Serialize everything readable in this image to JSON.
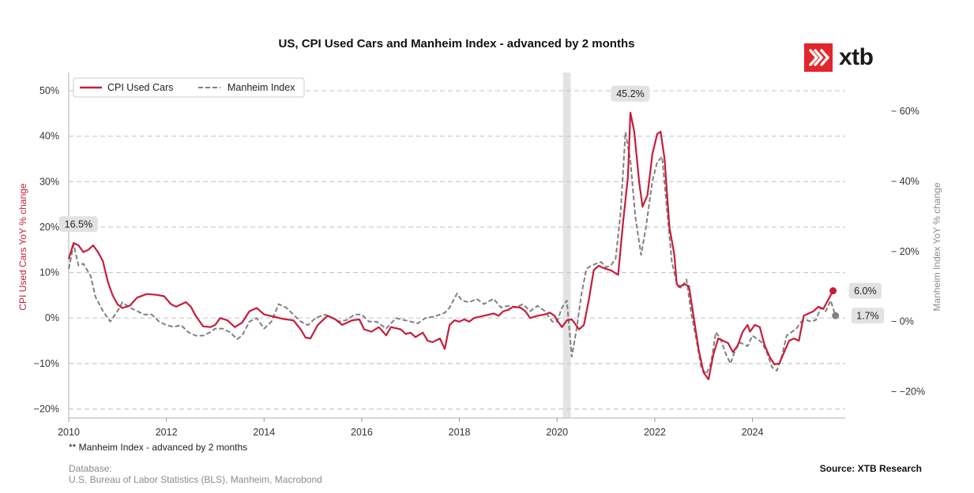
{
  "brand": {
    "logo_text": "xtb",
    "logo_color": "#e2262b"
  },
  "footnote": "** Manheim Index - advanced by 2 months",
  "database_label": "Database:",
  "database_sources": "U.S. Bureau of Labor Statistics (BLS), Manheim, Macrobond",
  "source": "Source: XTB Research",
  "chart_data": {
    "type": "line",
    "title": "US, CPI Used Cars and Manheim Index - advanced by 2 months",
    "ylabel": "CPI Used Cars YoY % change",
    "ylabel_right": "Manheim Index YoY % change",
    "xlim": [
      2010,
      2025.9
    ],
    "ylim": [
      -22,
      54
    ],
    "ylim_right": [
      -27.5,
      71
    ],
    "yticks": [
      -20,
      -10,
      0,
      10,
      20,
      30,
      40,
      50
    ],
    "ytick_labels": [
      "−20%",
      "−10%",
      "0%",
      "10%",
      "20%",
      "30%",
      "40%",
      "50%"
    ],
    "yticks_right": [
      -20,
      0,
      20,
      40,
      60
    ],
    "ytick_labels_right": [
      "− −20%",
      "− 0%",
      "− 20%",
      "− 40%",
      "− 60%"
    ],
    "xticks": [
      2010,
      2012,
      2014,
      2016,
      2018,
      2020,
      2022,
      2024
    ],
    "xtick_labels": [
      "2010",
      "2012",
      "2014",
      "2016",
      "2018",
      "2020",
      "2022",
      "2024"
    ],
    "grid": "horizontal-dashed",
    "legend_position": "top-left",
    "shaded_period": [
      2020.12,
      2020.28
    ],
    "series": [
      {
        "name": "CPI Used Cars",
        "axis": "left",
        "color": "#c41e3a",
        "style": "solid",
        "points": [
          [
            2010.0,
            13
          ],
          [
            2010.1,
            16.5
          ],
          [
            2010.2,
            16
          ],
          [
            2010.3,
            14.5
          ],
          [
            2010.4,
            15
          ],
          [
            2010.5,
            16
          ],
          [
            2010.6,
            14.5
          ],
          [
            2010.7,
            12.5
          ],
          [
            2010.8,
            8
          ],
          [
            2010.9,
            5
          ],
          [
            2011.0,
            3
          ],
          [
            2011.1,
            2.2
          ],
          [
            2011.25,
            2.7
          ],
          [
            2011.4,
            4.5
          ],
          [
            2011.6,
            5.3
          ],
          [
            2011.8,
            5.1
          ],
          [
            2011.95,
            4.8
          ],
          [
            2012.1,
            3
          ],
          [
            2012.2,
            2.5
          ],
          [
            2012.4,
            3.5
          ],
          [
            2012.5,
            2.5
          ],
          [
            2012.6,
            0.5
          ],
          [
            2012.75,
            -1.8
          ],
          [
            2012.9,
            -2
          ],
          [
            2013.0,
            -1.5
          ],
          [
            2013.1,
            0
          ],
          [
            2013.25,
            -0.5
          ],
          [
            2013.4,
            -2
          ],
          [
            2013.55,
            -1
          ],
          [
            2013.7,
            1.5
          ],
          [
            2013.85,
            2.2
          ],
          [
            2014.0,
            0.8
          ],
          [
            2014.2,
            0.3
          ],
          [
            2014.4,
            -0.2
          ],
          [
            2014.6,
            -0.5
          ],
          [
            2014.75,
            -2.5
          ],
          [
            2014.85,
            -4.3
          ],
          [
            2014.95,
            -4.5
          ],
          [
            2015.1,
            -1.5
          ],
          [
            2015.3,
            0.5
          ],
          [
            2015.45,
            -0.2
          ],
          [
            2015.6,
            -1.5
          ],
          [
            2015.8,
            -0.5
          ],
          [
            2015.95,
            -0.3
          ],
          [
            2016.05,
            -2.5
          ],
          [
            2016.2,
            -3
          ],
          [
            2016.35,
            -2
          ],
          [
            2016.5,
            -3.8
          ],
          [
            2016.6,
            -2
          ],
          [
            2016.8,
            -2.5
          ],
          [
            2016.9,
            -3.5
          ],
          [
            2017.0,
            -3.2
          ],
          [
            2017.1,
            -4.2
          ],
          [
            2017.25,
            -3.2
          ],
          [
            2017.35,
            -5
          ],
          [
            2017.45,
            -5.3
          ],
          [
            2017.6,
            -4.5
          ],
          [
            2017.7,
            -6.8
          ],
          [
            2017.8,
            -1.5
          ],
          [
            2017.9,
            -0.5
          ],
          [
            2018.0,
            -0.8
          ],
          [
            2018.1,
            -0.3
          ],
          [
            2018.2,
            -0.8
          ],
          [
            2018.3,
            0
          ],
          [
            2018.5,
            0.5
          ],
          [
            2018.7,
            1
          ],
          [
            2018.8,
            0.5
          ],
          [
            2018.9,
            1.5
          ],
          [
            2019.0,
            1.8
          ],
          [
            2019.1,
            2.5
          ],
          [
            2019.25,
            2.3
          ],
          [
            2019.35,
            1.5
          ],
          [
            2019.45,
            0
          ],
          [
            2019.6,
            0.5
          ],
          [
            2019.75,
            0.8
          ],
          [
            2019.85,
            1.2
          ],
          [
            2019.95,
            0.5
          ],
          [
            2020.0,
            -0.5
          ],
          [
            2020.1,
            -2
          ],
          [
            2020.2,
            -0.5
          ],
          [
            2020.3,
            -0.3
          ],
          [
            2020.35,
            -1
          ],
          [
            2020.45,
            -2.5
          ],
          [
            2020.55,
            -1.5
          ],
          [
            2020.65,
            4
          ],
          [
            2020.75,
            10.5
          ],
          [
            2020.85,
            11.5
          ],
          [
            2020.95,
            11
          ],
          [
            2021.1,
            10.5
          ],
          [
            2021.25,
            9.5
          ],
          [
            2021.35,
            21
          ],
          [
            2021.45,
            31
          ],
          [
            2021.5,
            45.2
          ],
          [
            2021.58,
            41
          ],
          [
            2021.68,
            30
          ],
          [
            2021.75,
            24.5
          ],
          [
            2021.85,
            27
          ],
          [
            2021.95,
            36
          ],
          [
            2022.05,
            40.5
          ],
          [
            2022.12,
            41
          ],
          [
            2022.2,
            35
          ],
          [
            2022.3,
            20
          ],
          [
            2022.4,
            14
          ],
          [
            2022.45,
            7.5
          ],
          [
            2022.5,
            6.8
          ],
          [
            2022.6,
            7.5
          ],
          [
            2022.7,
            7
          ],
          [
            2022.8,
            0
          ],
          [
            2022.9,
            -7
          ],
          [
            2023.0,
            -12
          ],
          [
            2023.1,
            -13.5
          ],
          [
            2023.2,
            -8
          ],
          [
            2023.3,
            -4.5
          ],
          [
            2023.4,
            -5
          ],
          [
            2023.5,
            -5.5
          ],
          [
            2023.6,
            -7.5
          ],
          [
            2023.7,
            -6
          ],
          [
            2023.8,
            -3
          ],
          [
            2023.9,
            -1.5
          ],
          [
            2023.95,
            -3
          ],
          [
            2024.05,
            -1.5
          ],
          [
            2024.15,
            -2
          ],
          [
            2024.25,
            -6
          ],
          [
            2024.35,
            -8.5
          ],
          [
            2024.45,
            -10.2
          ],
          [
            2024.55,
            -10
          ],
          [
            2024.65,
            -7.5
          ],
          [
            2024.75,
            -5
          ],
          [
            2024.85,
            -4.5
          ],
          [
            2024.95,
            -5
          ],
          [
            2025.05,
            0.5
          ],
          [
            2025.15,
            1
          ],
          [
            2025.25,
            1.5
          ],
          [
            2025.35,
            2.5
          ],
          [
            2025.45,
            2
          ],
          [
            2025.55,
            4
          ],
          [
            2025.65,
            6
          ]
        ]
      },
      {
        "name": "Manheim Index",
        "axis": "right",
        "color": "#808080",
        "style": "dashed",
        "points": [
          [
            2010.0,
            15
          ],
          [
            2010.1,
            22
          ],
          [
            2010.2,
            16
          ],
          [
            2010.3,
            16.5
          ],
          [
            2010.45,
            13
          ],
          [
            2010.55,
            7
          ],
          [
            2010.7,
            3
          ],
          [
            2010.85,
            0
          ],
          [
            2011.0,
            3
          ],
          [
            2011.1,
            5.5
          ],
          [
            2011.25,
            4
          ],
          [
            2011.4,
            3
          ],
          [
            2011.55,
            2
          ],
          [
            2011.7,
            2
          ],
          [
            2011.85,
            0
          ],
          [
            2012.0,
            -1
          ],
          [
            2012.15,
            -1.5
          ],
          [
            2012.3,
            -1
          ],
          [
            2012.45,
            -3
          ],
          [
            2012.6,
            -4
          ],
          [
            2012.75,
            -4
          ],
          [
            2012.9,
            -3
          ],
          [
            2013.0,
            -2
          ],
          [
            2013.15,
            -2
          ],
          [
            2013.3,
            -3
          ],
          [
            2013.45,
            -5
          ],
          [
            2013.55,
            -4
          ],
          [
            2013.7,
            0
          ],
          [
            2013.85,
            1
          ],
          [
            2014.0,
            -2
          ],
          [
            2014.15,
            0
          ],
          [
            2014.3,
            5
          ],
          [
            2014.45,
            4
          ],
          [
            2014.6,
            2
          ],
          [
            2014.75,
            0
          ],
          [
            2014.9,
            -1
          ],
          [
            2015.05,
            1
          ],
          [
            2015.25,
            2
          ],
          [
            2015.4,
            1
          ],
          [
            2015.55,
            0
          ],
          [
            2015.7,
            0.5
          ],
          [
            2015.85,
            2
          ],
          [
            2016.0,
            2
          ],
          [
            2016.15,
            0
          ],
          [
            2016.3,
            0
          ],
          [
            2016.5,
            -2
          ],
          [
            2016.7,
            1
          ],
          [
            2016.85,
            0.5
          ],
          [
            2017.0,
            0
          ],
          [
            2017.15,
            -0.5
          ],
          [
            2017.3,
            1
          ],
          [
            2017.5,
            1.5
          ],
          [
            2017.7,
            2.5
          ],
          [
            2017.8,
            4
          ],
          [
            2017.95,
            8
          ],
          [
            2018.05,
            6
          ],
          [
            2018.2,
            5.5
          ],
          [
            2018.35,
            6.5
          ],
          [
            2018.5,
            5
          ],
          [
            2018.7,
            6.5
          ],
          [
            2018.85,
            4
          ],
          [
            2019.0,
            4.5
          ],
          [
            2019.15,
            4
          ],
          [
            2019.3,
            5
          ],
          [
            2019.45,
            3
          ],
          [
            2019.6,
            4.5
          ],
          [
            2019.75,
            3
          ],
          [
            2019.9,
            0
          ],
          [
            2020.0,
            0
          ],
          [
            2020.1,
            4
          ],
          [
            2020.2,
            6
          ],
          [
            2020.3,
            -10
          ],
          [
            2020.4,
            -2
          ],
          [
            2020.5,
            8
          ],
          [
            2020.6,
            15
          ],
          [
            2020.7,
            16
          ],
          [
            2020.8,
            16.5
          ],
          [
            2020.9,
            17
          ],
          [
            2021.0,
            15.5
          ],
          [
            2021.1,
            16
          ],
          [
            2021.2,
            18
          ],
          [
            2021.3,
            31
          ],
          [
            2021.4,
            54
          ],
          [
            2021.5,
            46
          ],
          [
            2021.6,
            30
          ],
          [
            2021.72,
            19
          ],
          [
            2021.82,
            27
          ],
          [
            2021.95,
            40
          ],
          [
            2022.05,
            45.5
          ],
          [
            2022.15,
            47
          ],
          [
            2022.25,
            32
          ],
          [
            2022.35,
            17
          ],
          [
            2022.45,
            11
          ],
          [
            2022.55,
            9.5
          ],
          [
            2022.65,
            12
          ],
          [
            2022.75,
            2
          ],
          [
            2022.85,
            -5
          ],
          [
            2022.95,
            -13
          ],
          [
            2023.05,
            -15
          ],
          [
            2023.15,
            -12
          ],
          [
            2023.25,
            -3
          ],
          [
            2023.35,
            -5
          ],
          [
            2023.45,
            -9
          ],
          [
            2023.55,
            -12
          ],
          [
            2023.65,
            -8
          ],
          [
            2023.75,
            -6
          ],
          [
            2023.9,
            -7
          ],
          [
            2024.0,
            -4
          ],
          [
            2024.1,
            -5
          ],
          [
            2024.2,
            -6
          ],
          [
            2024.3,
            -9
          ],
          [
            2024.4,
            -13
          ],
          [
            2024.5,
            -14
          ],
          [
            2024.6,
            -10
          ],
          [
            2024.7,
            -4
          ],
          [
            2024.8,
            -3
          ],
          [
            2024.9,
            -2
          ],
          [
            2025.0,
            0
          ],
          [
            2025.1,
            0.5
          ],
          [
            2025.2,
            0
          ],
          [
            2025.3,
            0.5
          ],
          [
            2025.4,
            4
          ],
          [
            2025.5,
            3
          ],
          [
            2025.6,
            6
          ],
          [
            2025.7,
            1.7
          ]
        ]
      }
    ],
    "annotations": [
      {
        "text": "16.5%",
        "x": 2010.2,
        "y": 16.5,
        "axis": "left"
      },
      {
        "text": "45.2%",
        "x": 2021.5,
        "y": 45.2,
        "axis": "left"
      },
      {
        "text": "6.0%",
        "x": 2025.65,
        "y": 6.0,
        "axis": "left",
        "marker": true,
        "marker_color": "#c41e3a"
      },
      {
        "text": "1.7%",
        "x": 2025.7,
        "y": 1.7,
        "axis": "right",
        "marker": true,
        "marker_color": "#808080"
      }
    ]
  }
}
